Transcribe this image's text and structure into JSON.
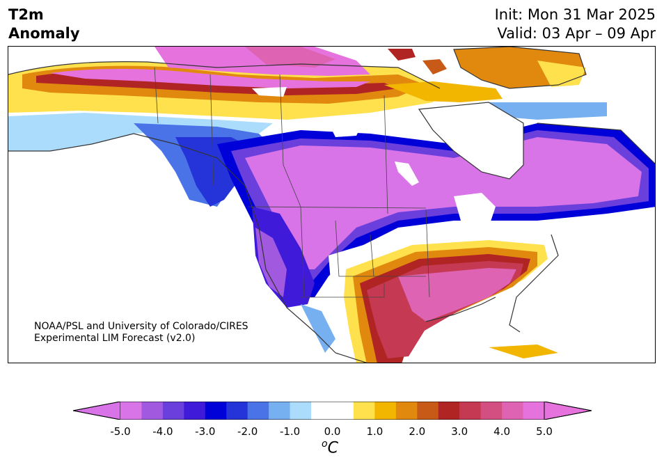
{
  "title": {
    "left": [
      "T2m",
      "Anomaly"
    ],
    "init": "Init: Mon 31 Mar 2025",
    "valid": "Valid: 03 Apr – 09 Apr"
  },
  "credit": {
    "line1": "NOAA/PSL and University of Colorado/CIRES",
    "line2": "Experimental LIM Forecast (v2.0)"
  },
  "colorbar": {
    "unit_sup": "o",
    "unit": "C",
    "ticks": [
      "-5.0",
      "-4.0",
      "-3.0",
      "-2.0",
      "-1.0",
      "0.0",
      "1.0",
      "2.0",
      "3.0",
      "4.0",
      "5.0"
    ],
    "colors": [
      "#d873e8",
      "#a159e0",
      "#6b3fdc",
      "#3f1ad8",
      "#0000d8",
      "#2534d8",
      "#4a73e8",
      "#77b0f0",
      "#acdcfc",
      "#ffffff",
      "#ffffff",
      "#ffe14d",
      "#f2b600",
      "#e1890e",
      "#c85a18",
      "#b02424",
      "#c53a52",
      "#d34f82",
      "#de63b2",
      "#e673dd"
    ],
    "under_color": "#d873e8",
    "over_color": "#e673dd"
  },
  "regions": {
    "arctic_pink": "#e673dd",
    "warm_red": "#c53a52",
    "cold_purple": "#d873e8"
  }
}
